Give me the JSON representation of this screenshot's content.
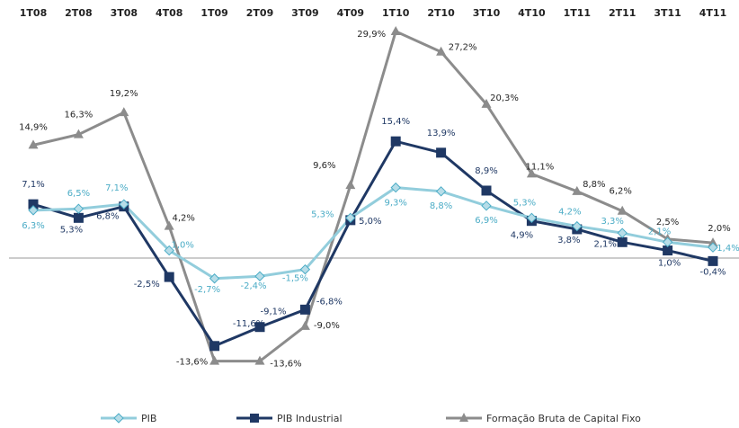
{
  "chart_data": {
    "type": "line",
    "categories": [
      "1T08",
      "2T08",
      "3T08",
      "4T08",
      "1T09",
      "2T09",
      "3T09",
      "4T09",
      "1T10",
      "2T10",
      "3T10",
      "4T10",
      "1T11",
      "2T11",
      "3T11",
      "4T11"
    ],
    "series": [
      {
        "name": "PIB",
        "color": "#92cddc",
        "label_color": "#4bacc6",
        "marker": "diamond",
        "values": [
          6.3,
          6.5,
          7.1,
          1.0,
          -2.7,
          -2.4,
          -1.5,
          5.3,
          9.3,
          8.8,
          6.9,
          5.3,
          4.2,
          3.3,
          2.1,
          1.4
        ],
        "value_labels": [
          "6,3%",
          "6,5%",
          "7,1%",
          "1,0%",
          "-2,7%",
          "-2,4%",
          "-1,5%",
          "5,3%",
          "9,3%",
          "8,8%",
          "6,9%",
          "5,3%",
          "4,2%",
          "3,3%",
          "2,1%",
          "1,4%"
        ]
      },
      {
        "name": "PIB Industrial",
        "color": "#1f3864",
        "label_color": "#1f3864",
        "marker": "square",
        "values": [
          7.1,
          5.3,
          6.8,
          -2.5,
          -11.6,
          -9.1,
          -6.8,
          5.0,
          15.4,
          13.9,
          8.9,
          4.9,
          3.8,
          2.1,
          1.0,
          -0.4
        ],
        "value_labels": [
          "7,1%",
          "5,3%",
          "6,8%",
          "-2,5%",
          "-11,6%",
          "-9,1%",
          "-6,8%",
          "5,0%",
          "15,4%",
          "13,9%",
          "8,9%",
          "4,9%",
          "3,8%",
          "2,1%",
          "1,0%",
          "-0,4%"
        ]
      },
      {
        "name": "Formação Bruta de Capital Fixo",
        "color": "#8c8c8c",
        "label_color": "#262626",
        "marker": "triangle",
        "values": [
          14.9,
          16.3,
          19.2,
          4.2,
          -13.6,
          -13.6,
          -9.0,
          9.6,
          29.9,
          27.2,
          20.3,
          11.1,
          8.8,
          6.2,
          2.5,
          2.0
        ],
        "value_labels": [
          "14,9%",
          "16,3%",
          "19,2%",
          "4,2%",
          "-13,6%",
          "-13,6%",
          "-9,0%",
          "9,6%",
          "29,9%",
          "27,2%",
          "20,3%",
          "11,1%",
          "8,8%",
          "6,2%",
          "2,5%",
          "2,0%"
        ]
      }
    ]
  }
}
